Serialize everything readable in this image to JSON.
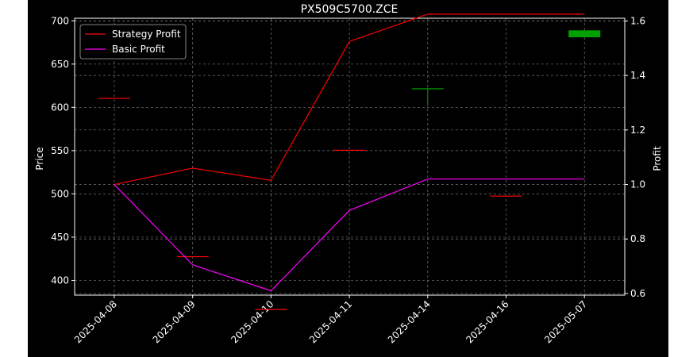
{
  "chart_data": {
    "type": "line",
    "title": "PX509C5700.ZCE",
    "xlabel": "",
    "ylabel_left": "Price",
    "ylabel_right": "Profit",
    "categories": [
      "2025-04-08",
      "2025-04-09",
      "2025-04-10",
      "2025-04-11",
      "2025-04-14",
      "2025-04-16",
      "2025-05-07"
    ],
    "ylim_left": [
      383,
      703
    ],
    "ylim_right": [
      0.594,
      1.61
    ],
    "left_ticks": [
      400,
      450,
      500,
      550,
      600,
      650,
      700
    ],
    "right_ticks": [
      0.6,
      0.8,
      1.0,
      1.2,
      1.4,
      1.6
    ],
    "grid": true,
    "legend_position": "top-left",
    "series": [
      {
        "name": "Strategy Profit",
        "axis": "right",
        "color": "#ff0000",
        "values": [
          1.0,
          1.06,
          1.015,
          1.525,
          1.625,
          1.625,
          1.625
        ]
      },
      {
        "name": "Basic Profit",
        "axis": "right",
        "color": "#ff00ff",
        "values": [
          1.0,
          0.705,
          0.61,
          0.905,
          1.02,
          1.02,
          1.02
        ]
      }
    ],
    "candles": [
      {
        "x": "2025-04-08",
        "open": 611,
        "high": 611,
        "low": 611,
        "close": 611,
        "color": "#ff0000"
      },
      {
        "x": "2025-04-09",
        "open": 428,
        "high": 428,
        "low": 428,
        "close": 428,
        "color": "#ff0000"
      },
      {
        "x": "2025-04-10",
        "open": 367,
        "high": 367,
        "low": 367,
        "close": 367,
        "color": "#ff0000"
      },
      {
        "x": "2025-04-11",
        "open": 551,
        "high": 551,
        "low": 551,
        "close": 551,
        "color": "#ff0000"
      },
      {
        "x": "2025-04-14",
        "open": 622,
        "high": 622,
        "low": 604,
        "close": 622,
        "color": "#00a000"
      },
      {
        "x": "2025-04-16",
        "open": 498,
        "high": 498,
        "low": 498,
        "close": 498,
        "color": "#ff0000"
      },
      {
        "x": "2025-05-07",
        "open": 681,
        "high": 689,
        "low": 681,
        "close": 689,
        "color": "#00a000"
      }
    ]
  }
}
